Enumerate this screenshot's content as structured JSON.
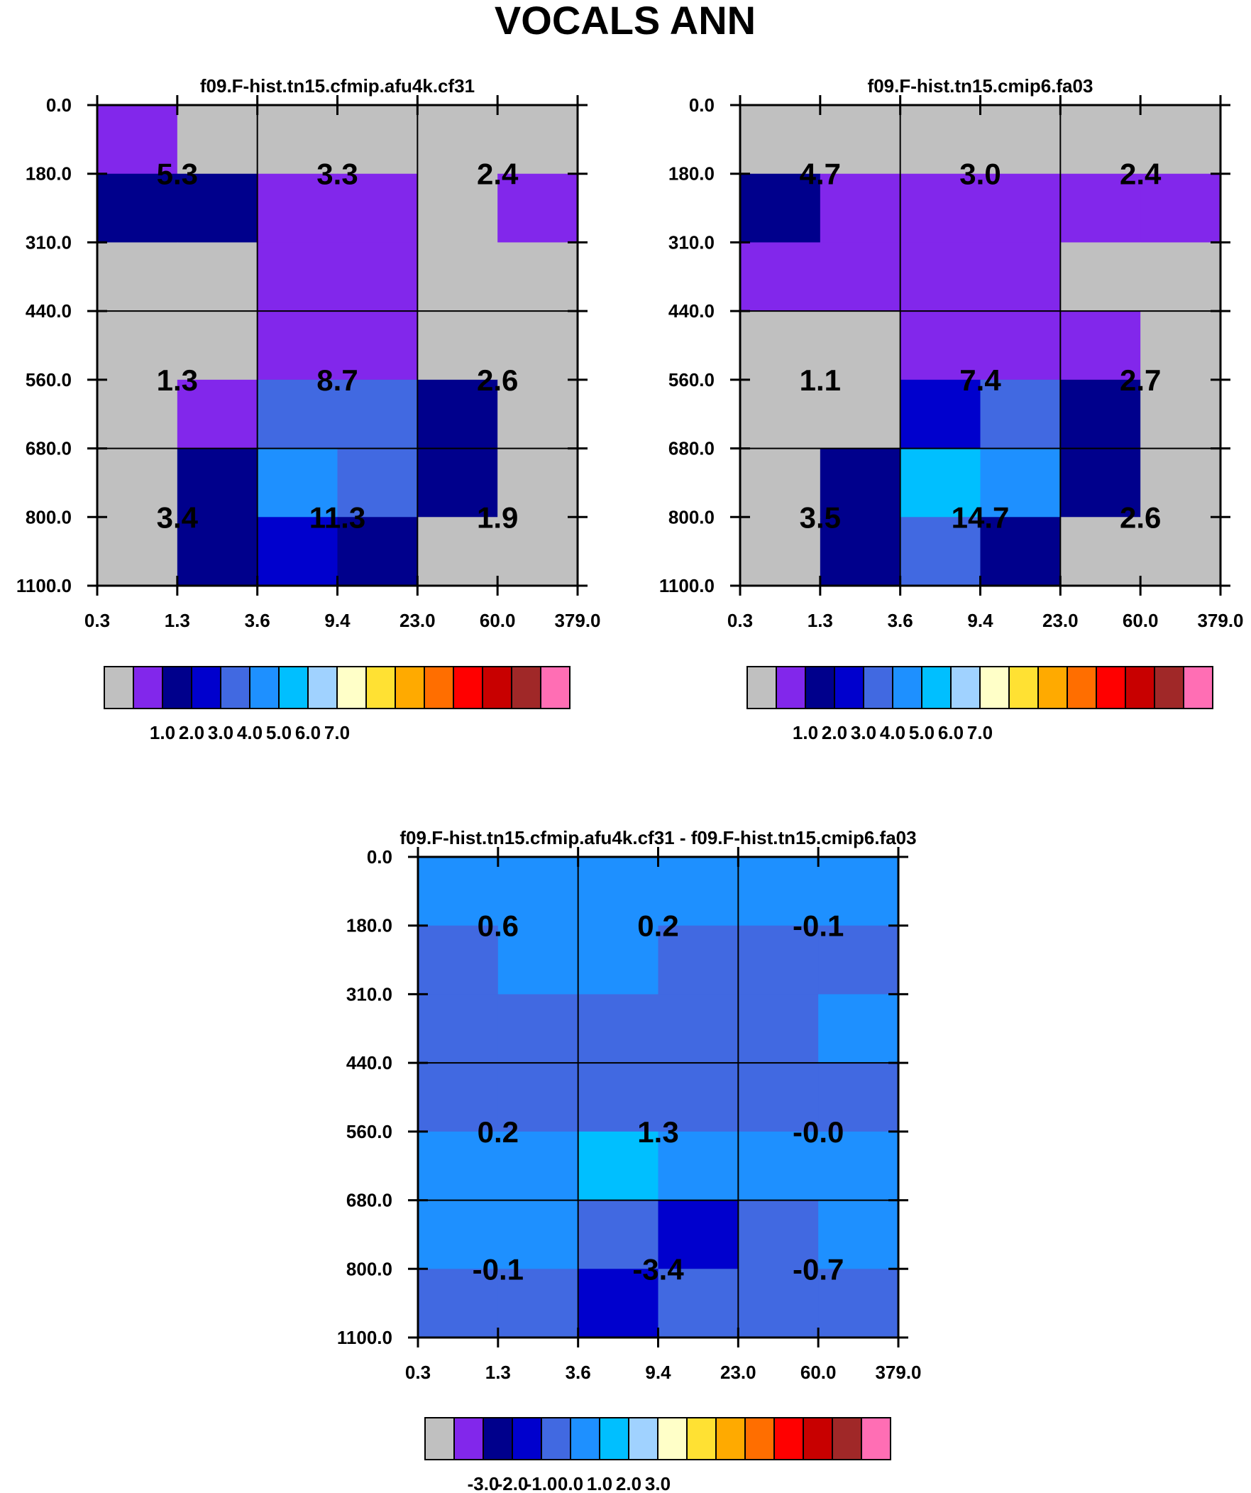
{
  "title": "VOCALS ANN",
  "chart_data": [
    {
      "type": "heatmap",
      "title": "f09.F-hist.tn15.cfmip.afu4k.cf31",
      "x_ticks": [
        "0.3",
        "1.3",
        "3.6",
        "9.4",
        "23.0",
        "60.0",
        "379.0"
      ],
      "y_ticks": [
        "0.0",
        "180.0",
        "310.0",
        "440.0",
        "560.0",
        "680.0",
        "800.0",
        "1100.0"
      ],
      "grid": true,
      "cells": [
        [
          0.9,
          0.0,
          0.0,
          0.0,
          0.0,
          0.0
        ],
        [
          1.6,
          1.1,
          0.6,
          0.7,
          0.0,
          0.5
        ],
        [
          0.0,
          0.0,
          0.7,
          0.6,
          0.0,
          0.0
        ],
        [
          0.0,
          0.0,
          0.7,
          0.7,
          0.0,
          0.0
        ],
        [
          0.0,
          0.6,
          3.8,
          3.9,
          1.1,
          0.0
        ],
        [
          0.0,
          1.8,
          4.3,
          3.6,
          1.2,
          0.0
        ],
        [
          0.0,
          1.3,
          2.4,
          1.2,
          0.0,
          0.0
        ]
      ],
      "block_labels": [
        {
          "col": 0,
          "row": 0,
          "text": "5.3"
        },
        {
          "col": 1,
          "row": 0,
          "text": "3.3"
        },
        {
          "col": 2,
          "row": 0,
          "text": "2.4"
        },
        {
          "col": 0,
          "row": 1,
          "text": "1.3"
        },
        {
          "col": 1,
          "row": 1,
          "text": "8.7"
        },
        {
          "col": 2,
          "row": 1,
          "text": "2.6"
        },
        {
          "col": 0,
          "row": 2,
          "text": "3.4"
        },
        {
          "col": 1,
          "row": 2,
          "text": "11.3"
        },
        {
          "col": 2,
          "row": 2,
          "text": "1.9"
        }
      ],
      "colorbar": {
        "colors": [
          "#c0c0c0",
          "#8227eb",
          "#00008c",
          "#0000cd",
          "#4169e1",
          "#1e90ff",
          "#00bfff",
          "#a0d2ff",
          "#ffffc8",
          "#ffe133",
          "#ffaa00",
          "#ff6e00",
          "#ff0000",
          "#c80000",
          "#a02828",
          "#ff6eb4"
        ],
        "labels": [
          "1.0",
          "2.0",
          "3.0",
          "4.0",
          "5.0",
          "6.0",
          "7.0"
        ]
      }
    },
    {
      "type": "heatmap",
      "title": "f09.F-hist.tn15.cmip6.fa03",
      "x_ticks": [
        "0.3",
        "1.3",
        "3.6",
        "9.4",
        "23.0",
        "60.0",
        "379.0"
      ],
      "y_ticks": [
        "0.0",
        "180.0",
        "310.0",
        "440.0",
        "560.0",
        "680.0",
        "800.0",
        "1100.0"
      ],
      "grid": true,
      "cells": [
        [
          0.0,
          0.0,
          0.0,
          0.0,
          0.0,
          0.0
        ],
        [
          1.6,
          0.6,
          0.6,
          0.6,
          0.6,
          0.6
        ],
        [
          0.6,
          0.6,
          0.6,
          0.6,
          0.0,
          0.0
        ],
        [
          0.0,
          0.0,
          0.6,
          0.6,
          0.6,
          0.0
        ],
        [
          0.0,
          0.0,
          2.6,
          3.1,
          1.1,
          0.0
        ],
        [
          0.0,
          1.1,
          5.2,
          4.6,
          1.6,
          0.0
        ],
        [
          0.0,
          1.6,
          3.1,
          1.6,
          0.0,
          0.0
        ]
      ],
      "block_labels": [
        {
          "col": 0,
          "row": 0,
          "text": "4.7"
        },
        {
          "col": 1,
          "row": 0,
          "text": "3.0"
        },
        {
          "col": 2,
          "row": 0,
          "text": "2.4"
        },
        {
          "col": 0,
          "row": 1,
          "text": "1.1"
        },
        {
          "col": 1,
          "row": 1,
          "text": "7.4"
        },
        {
          "col": 2,
          "row": 1,
          "text": "2.7"
        },
        {
          "col": 0,
          "row": 2,
          "text": "3.5"
        },
        {
          "col": 1,
          "row": 2,
          "text": "14.7"
        },
        {
          "col": 2,
          "row": 2,
          "text": "2.6"
        }
      ],
      "colorbar": {
        "colors": [
          "#c0c0c0",
          "#8227eb",
          "#00008c",
          "#0000cd",
          "#4169e1",
          "#1e90ff",
          "#00bfff",
          "#a0d2ff",
          "#ffffc8",
          "#ffe133",
          "#ffaa00",
          "#ff6e00",
          "#ff0000",
          "#c80000",
          "#a02828",
          "#ff6eb4"
        ],
        "labels": [
          "1.0",
          "2.0",
          "3.0",
          "4.0",
          "5.0",
          "6.0",
          "7.0"
        ]
      }
    },
    {
      "type": "heatmap",
      "title": "f09.F-hist.tn15.cfmip.afu4k.cf31 - f09.F-hist.tn15.cmip6.fa03",
      "x_ticks": [
        "0.3",
        "1.3",
        "3.6",
        "9.4",
        "23.0",
        "60.0",
        "379.0"
      ],
      "y_ticks": [
        "0.0",
        "180.0",
        "310.0",
        "440.0",
        "560.0",
        "680.0",
        "800.0",
        "1100.0"
      ],
      "grid": true,
      "cells": [
        [
          0.8,
          0.2,
          0.2,
          0.2,
          0.2,
          0.2
        ],
        [
          -0.1,
          0.2,
          0.2,
          -0.1,
          -0.1,
          -0.1
        ],
        [
          -0.1,
          -0.1,
          -0.1,
          -0.1,
          -0.1,
          0.2
        ],
        [
          -0.1,
          -0.1,
          -0.1,
          -0.1,
          -0.1,
          -0.1
        ],
        [
          0.2,
          0.2,
          1.3,
          0.8,
          0.2,
          0.2
        ],
        [
          0.2,
          0.2,
          -0.8,
          -1.3,
          -0.8,
          0.2
        ],
        [
          -0.1,
          -0.1,
          -1.3,
          -0.8,
          -0.1,
          -0.1
        ]
      ],
      "block_labels": [
        {
          "col": 0,
          "row": 0,
          "text": "0.6"
        },
        {
          "col": 1,
          "row": 0,
          "text": "0.2"
        },
        {
          "col": 2,
          "row": 0,
          "text": "-0.1"
        },
        {
          "col": 0,
          "row": 1,
          "text": "0.2"
        },
        {
          "col": 1,
          "row": 1,
          "text": "1.3"
        },
        {
          "col": 2,
          "row": 1,
          "text": "-0.0"
        },
        {
          "col": 0,
          "row": 2,
          "text": "-0.1"
        },
        {
          "col": 1,
          "row": 2,
          "text": "-3.4"
        },
        {
          "col": 2,
          "row": 2,
          "text": "-0.7"
        }
      ],
      "colorbar": {
        "colors": [
          "#c0c0c0",
          "#8227eb",
          "#00008c",
          "#0000cd",
          "#4169e1",
          "#1e90ff",
          "#00bfff",
          "#a0d2ff",
          "#ffffc8",
          "#ffe133",
          "#ffaa00",
          "#ff6e00",
          "#ff0000",
          "#c80000",
          "#a02828",
          "#ff6eb4"
        ],
        "labels": [
          "-3.0",
          "-2.0",
          "-1.0",
          "0.0",
          "1.0",
          "2.0",
          "3.0"
        ]
      }
    }
  ]
}
